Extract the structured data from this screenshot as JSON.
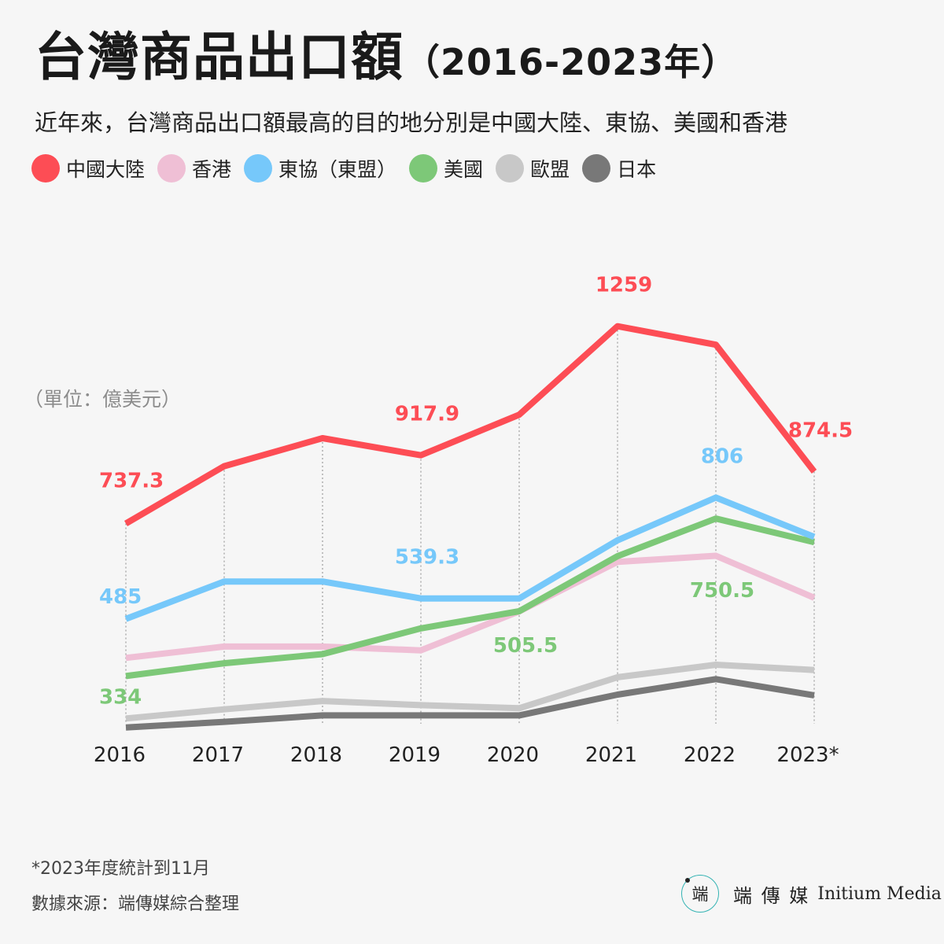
{
  "header": {
    "title": "台灣商品出口額",
    "title_years": "（2016-2023年）",
    "subtitle": "近年來，台灣商品出口額最高的目的地分別是中國大陸、東協、美國和香港"
  },
  "legend": [
    {
      "label": "中國大陸",
      "color": "#fd4d55"
    },
    {
      "label": "香港",
      "color": "#efbfd5"
    },
    {
      "label": "東協（東盟）",
      "color": "#76c8fa"
    },
    {
      "label": "美國",
      "color": "#7dc878"
    },
    {
      "label": "歐盟",
      "color": "#c8c8c8"
    },
    {
      "label": "日本",
      "color": "#787878"
    }
  ],
  "unit_label": "（單位：億美元）",
  "chart_data": {
    "type": "line",
    "x": [
      "2016",
      "2017",
      "2018",
      "2019",
      "2020",
      "2021",
      "2022",
      "2023*"
    ],
    "ylim": [
      0,
      1350
    ],
    "grid": "vertical dotted lines at each year",
    "series": [
      {
        "name": "中國大陸",
        "color": "#fd4d55",
        "values": [
          737.3,
          889,
          963,
          917.9,
          1025,
          1259,
          1210,
          874.5
        ],
        "labels": [
          {
            "i": 0,
            "text": "737.3"
          },
          {
            "i": 3,
            "text": "917.9"
          },
          {
            "i": 5,
            "text": "1259"
          },
          {
            "i": 7,
            "text": "874.5"
          }
        ]
      },
      {
        "name": "東協（東盟）",
        "color": "#76c8fa",
        "values": [
          485,
          584,
          584,
          539.3,
          539,
          693,
          806,
          702
        ],
        "labels": [
          {
            "i": 0,
            "text": "485"
          },
          {
            "i": 3,
            "text": "539.3"
          },
          {
            "i": 6,
            "text": "806"
          }
        ]
      },
      {
        "name": "美國",
        "color": "#7dc878",
        "values": [
          334,
          368,
          392,
          460,
          505.5,
          651,
          750.5,
          688
        ],
        "labels": [
          {
            "i": 0,
            "text": "334"
          },
          {
            "i": 4,
            "text": "505.5"
          },
          {
            "i": 6,
            "text": "750.5"
          }
        ]
      },
      {
        "name": "香港",
        "color": "#efbfd5",
        "values": [
          382,
          412,
          412,
          402,
          505,
          636,
          652,
          541
        ],
        "labels": []
      },
      {
        "name": "歐盟",
        "color": "#c8c8c8",
        "values": [
          222,
          246,
          268,
          257,
          249,
          331,
          364,
          350
        ],
        "labels": []
      },
      {
        "name": "日本",
        "color": "#787878",
        "values": [
          198,
          213,
          230,
          230,
          230,
          285,
          326,
          283
        ],
        "labels": []
      }
    ]
  },
  "footer": {
    "footnote": "*2023年度統計到11月",
    "source": "數據來源：端傳媒綜合整理",
    "brand_zh": "端 傳 媒",
    "brand_en": "Initium Media",
    "logo_glyph": "端"
  }
}
